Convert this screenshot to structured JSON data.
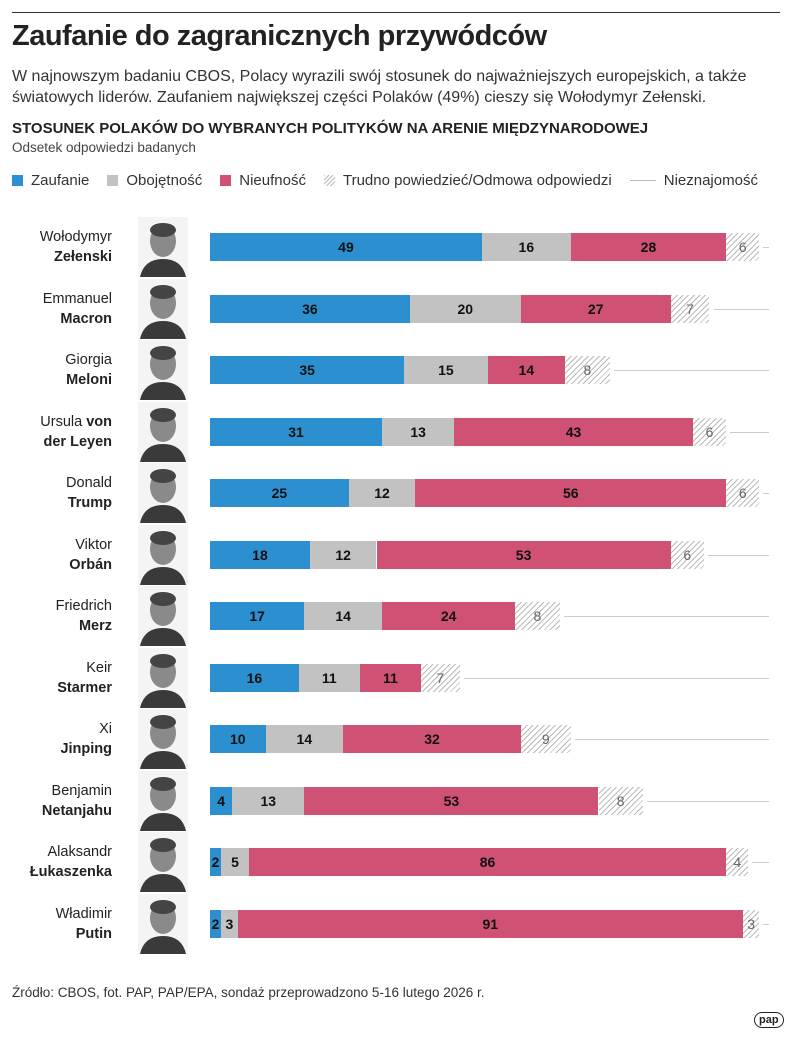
{
  "title": "Zaufanie do zagranicznych przywódców",
  "subtitle": "W najnowszym badaniu CBOS, Polacy wyrazili swój stosunek do najważniejszych europejskich, a także światowych liderów. Zaufaniem największej części Polaków (49%) cieszy się Wołodymyr Zełenski.",
  "source": "Źródło: CBOS, fot. PAP, PAP/EPA, sondaż przeprowadzono 5-16 lutego 2026 r.",
  "logo": "pap",
  "chart_data": {
    "type": "bar",
    "orientation": "horizontal-stacked",
    "title": "STOSUNEK POLAKÓW DO WYBRANYCH POLITYKÓW NA ARENIE MIĘDZYNARODOWEJ",
    "subtitle": "Odsetek odpowiedzi badanych",
    "xlim": [
      0,
      100
    ],
    "legend_position": "top",
    "series": [
      {
        "name": "Zaufanie",
        "color": "#2b8fd0"
      },
      {
        "name": "Obojętność",
        "color": "#c2c2c2"
      },
      {
        "name": "Nieufność",
        "color": "#cf5274"
      },
      {
        "name": "Trudno powiedzieć/Odmowa odpowiedzi",
        "color": "hatched"
      },
      {
        "name": "Nieznajomość",
        "color": "#cccccc"
      }
    ],
    "rows": [
      {
        "first": "Wołodymyr",
        "bold1": "",
        "last": "Zełenski",
        "values": [
          49,
          16,
          28,
          6
        ]
      },
      {
        "first": "Emmanuel",
        "bold1": "",
        "last": "Macron",
        "values": [
          36,
          20,
          27,
          7
        ]
      },
      {
        "first": "Giorgia",
        "bold1": "",
        "last": "Meloni",
        "values": [
          35,
          15,
          14,
          8
        ]
      },
      {
        "first": "Ursula ",
        "bold1": "von",
        "last": "der Leyen",
        "values": [
          31,
          13,
          43,
          6
        ]
      },
      {
        "first": "Donald",
        "bold1": "",
        "last": "Trump",
        "values": [
          25,
          12,
          56,
          6
        ]
      },
      {
        "first": "Viktor",
        "bold1": "",
        "last": "Orbán",
        "values": [
          18,
          12,
          53,
          6
        ]
      },
      {
        "first": "Friedrich",
        "bold1": "",
        "last": "Merz",
        "values": [
          17,
          14,
          24,
          8
        ]
      },
      {
        "first": "Keir",
        "bold1": "",
        "last": "Starmer",
        "values": [
          16,
          11,
          11,
          7
        ]
      },
      {
        "first": "Xi",
        "bold1": "",
        "last": "Jinping",
        "values": [
          10,
          14,
          32,
          9
        ]
      },
      {
        "first": "Benjamin",
        "bold1": "",
        "last": "Netanjahu",
        "values": [
          4,
          13,
          53,
          8
        ]
      },
      {
        "first": "Alaksandr",
        "bold1": "",
        "last": "Łukaszenka",
        "values": [
          2,
          5,
          86,
          4
        ]
      },
      {
        "first": "Władimir",
        "bold1": "",
        "last": "Putin",
        "values": [
          2,
          3,
          91,
          3
        ]
      }
    ]
  }
}
